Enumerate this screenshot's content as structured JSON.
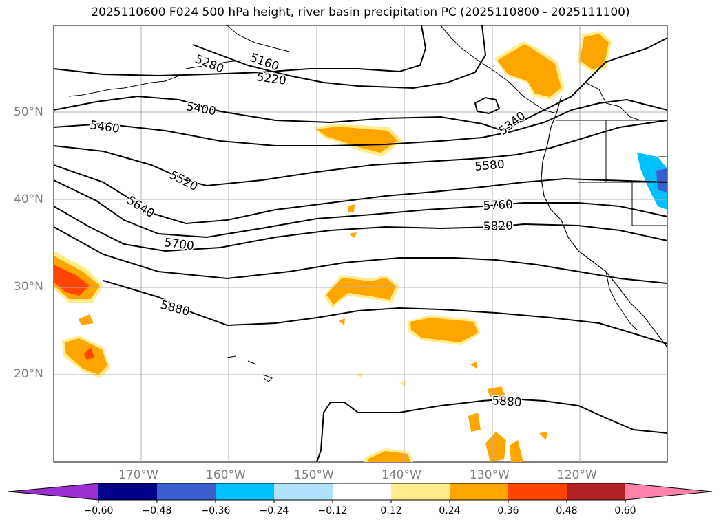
{
  "title": "2025110600 F024 500 hPa height, river basin precipitation PC (2025110800 - 2025111100)",
  "lat_labels": [
    "50°N",
    "40°N",
    "30°N",
    "20°N"
  ],
  "lon_labels": [
    "170°W",
    "160°W",
    "150°W",
    "140°W",
    "130°W",
    "120°W"
  ],
  "contour_labels": [
    "5160",
    "5280",
    "5220",
    "5400",
    "5460",
    "5340",
    "5520",
    "5580",
    "5640",
    "5760",
    "5700",
    "5820",
    "5880",
    "5880"
  ],
  "colorbar": {
    "ticks": [
      "−0.60",
      "−0.48",
      "−0.36",
      "−0.24",
      "−0.12",
      "0.12",
      "0.24",
      "0.36",
      "0.48",
      "0.60"
    ],
    "colors": [
      "#9b30d0",
      "#00008b",
      "#3a5fcd",
      "#00bfff",
      "#b0e2ff",
      "#ffffff",
      "#ffec8b",
      "#ffa500",
      "#ff4500",
      "#b22222",
      "#ff82ab"
    ]
  }
}
